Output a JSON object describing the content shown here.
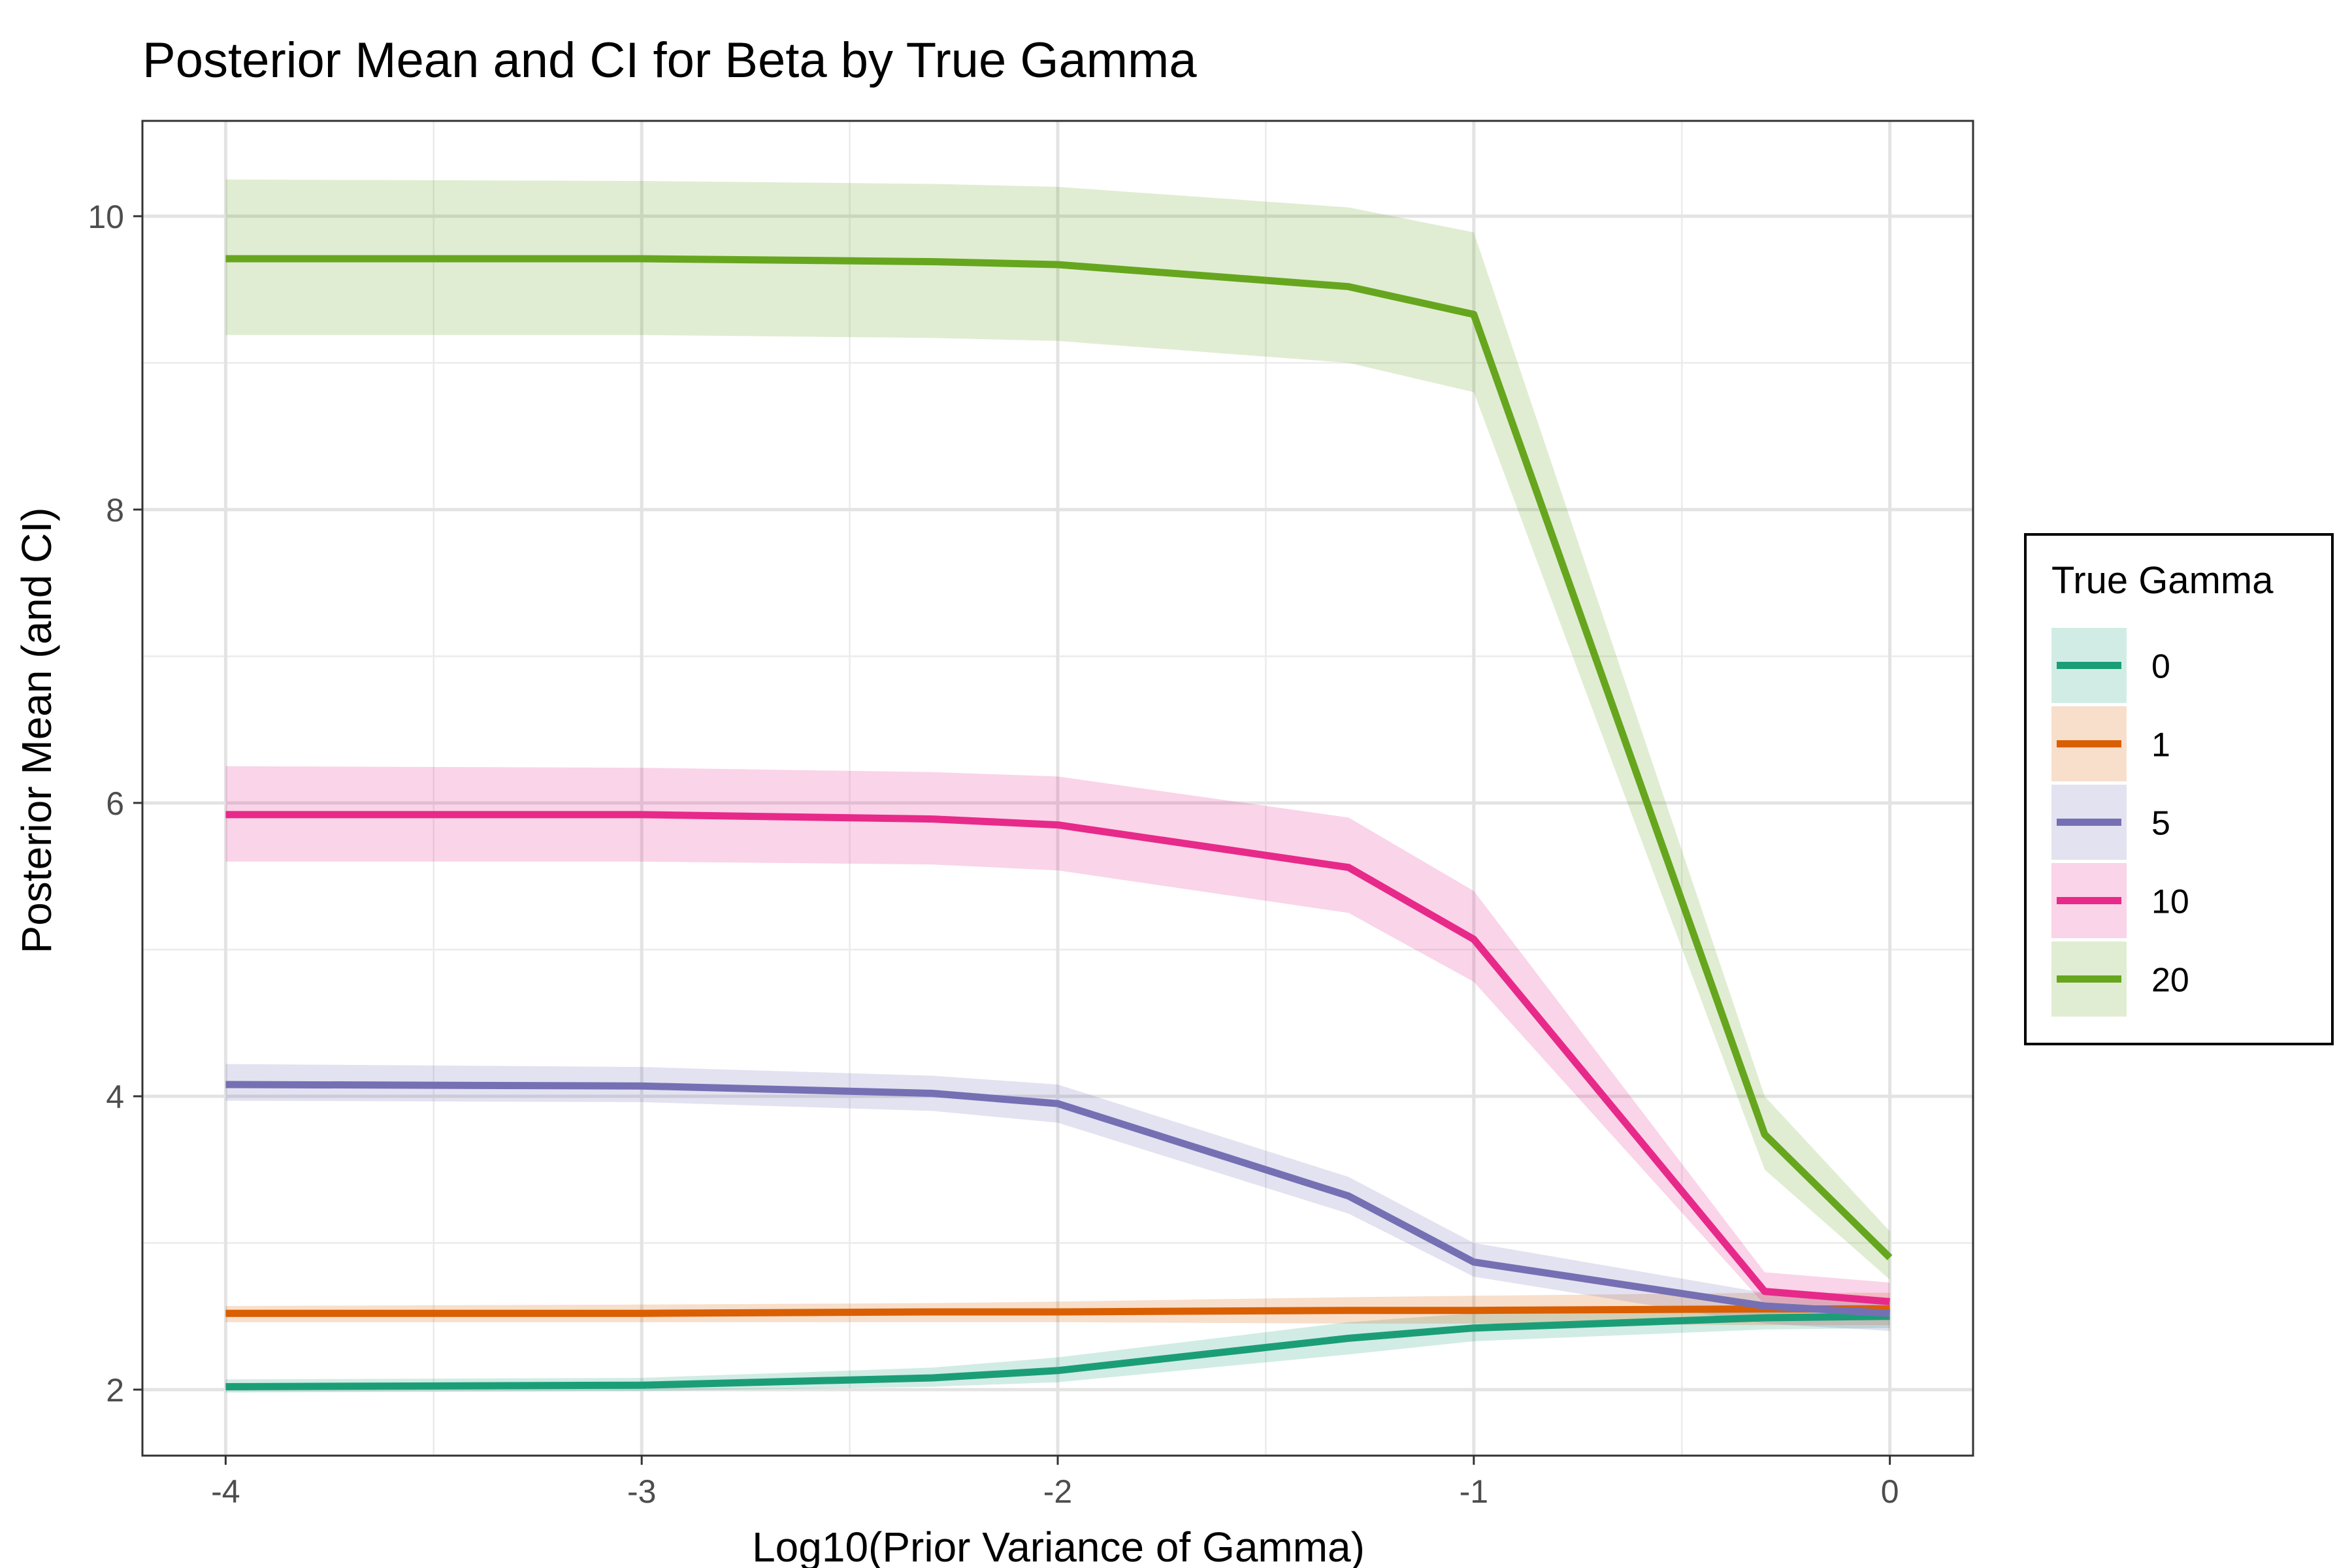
{
  "chart_data": {
    "type": "line",
    "title": "Posterior Mean and CI for Beta by True Gamma",
    "xlabel": "Log10(Prior Variance of Gamma)",
    "ylabel": "Posterior Mean (and CI)",
    "xlim": [
      -4.2,
      0.2
    ],
    "ylim": [
      1.55,
      10.65
    ],
    "x_ticks": [
      -4,
      -3,
      -2,
      -1,
      0
    ],
    "x_tick_labels": [
      "-4",
      "-3",
      "-2",
      "-1",
      "0"
    ],
    "y_ticks": [
      2,
      4,
      6,
      8,
      10
    ],
    "y_tick_labels": [
      "2",
      "4",
      "6",
      "8",
      "10"
    ],
    "grid": true,
    "legend": {
      "title": "True Gamma",
      "position": "right"
    },
    "x": [
      -4,
      -3,
      -2.301,
      -2,
      -1.301,
      -1,
      -0.301,
      0
    ],
    "series": [
      {
        "name": "0",
        "color": "#1b9e77",
        "values": [
          2.02,
          2.03,
          2.08,
          2.13,
          2.35,
          2.42,
          2.49,
          2.5
        ],
        "lower": [
          1.98,
          1.99,
          2.02,
          2.05,
          2.24,
          2.33,
          2.41,
          2.42
        ],
        "upper": [
          2.07,
          2.08,
          2.15,
          2.22,
          2.46,
          2.52,
          2.57,
          2.58
        ]
      },
      {
        "name": "1",
        "color": "#d95f02",
        "values": [
          2.52,
          2.52,
          2.53,
          2.53,
          2.54,
          2.54,
          2.55,
          2.55
        ],
        "lower": [
          2.46,
          2.46,
          2.46,
          2.46,
          2.45,
          2.45,
          2.44,
          2.44
        ],
        "upper": [
          2.57,
          2.58,
          2.59,
          2.6,
          2.63,
          2.64,
          2.66,
          2.66
        ]
      },
      {
        "name": "5",
        "color": "#7570b3",
        "values": [
          4.08,
          4.07,
          4.02,
          3.95,
          3.32,
          2.87,
          2.57,
          2.52
        ],
        "lower": [
          3.97,
          3.96,
          3.9,
          3.82,
          3.2,
          2.77,
          2.45,
          2.4
        ],
        "upper": [
          4.22,
          4.2,
          4.14,
          4.08,
          3.45,
          3.0,
          2.66,
          2.6
        ]
      },
      {
        "name": "10",
        "color": "#e7298a",
        "values": [
          5.92,
          5.92,
          5.89,
          5.85,
          5.56,
          5.07,
          2.67,
          2.6
        ],
        "lower": [
          5.6,
          5.6,
          5.58,
          5.54,
          5.25,
          4.78,
          2.58,
          2.49
        ],
        "upper": [
          6.25,
          6.24,
          6.21,
          6.18,
          5.9,
          5.4,
          2.8,
          2.73
        ]
      },
      {
        "name": "20",
        "color": "#66a61e",
        "values": [
          9.71,
          9.71,
          9.69,
          9.67,
          9.52,
          9.33,
          3.74,
          2.9
        ],
        "lower": [
          9.19,
          9.19,
          9.17,
          9.15,
          9.0,
          8.8,
          3.5,
          2.75
        ],
        "upper": [
          10.25,
          10.24,
          10.22,
          10.2,
          10.06,
          9.89,
          4.0,
          3.08
        ]
      }
    ]
  }
}
